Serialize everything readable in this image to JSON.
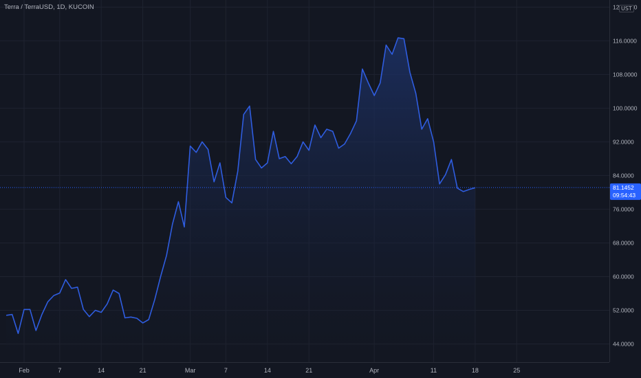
{
  "header": {
    "symbol_line": "Terra / TerraUSD, 1D, KUCOIN",
    "currency": "UST"
  },
  "colors": {
    "background": "#131722",
    "grid": "#1f2330",
    "line": "#2f5de0",
    "fill_top": "#1e3266",
    "price_label_bg": "#2962ff",
    "axis_text": "#b2b5be"
  },
  "price_label": {
    "price": "81.1452",
    "countdown": "09:54:43"
  },
  "chart_data": {
    "type": "area",
    "ylim": [
      40,
      124
    ],
    "y_ticks": [
      "44.0000",
      "52.0000",
      "60.0000",
      "68.0000",
      "76.0000",
      "84.0000",
      "92.0000",
      "100.0000",
      "108.0000",
      "116.0000",
      "124.0000"
    ],
    "y_tick_values": [
      44,
      52,
      60,
      68,
      76,
      84,
      92,
      100,
      108,
      116,
      124
    ],
    "x_ticks": [
      "Feb",
      "7",
      "14",
      "21",
      "Mar",
      "7",
      "14",
      "21",
      "Apr",
      "11",
      "18",
      "25"
    ],
    "x_tick_days": [
      0,
      6,
      13,
      20,
      28,
      34,
      41,
      48,
      59,
      69,
      76,
      83
    ],
    "last_price": 81.1452,
    "series": [
      {
        "x": [
          -3,
          -2,
          -1,
          0,
          1,
          2,
          3,
          4,
          5,
          6,
          7,
          8,
          9,
          10,
          11,
          12,
          13,
          14,
          15,
          16,
          17,
          18,
          19,
          20,
          21,
          22,
          23,
          24,
          25,
          26,
          27,
          28,
          29,
          30,
          31,
          32,
          33,
          34,
          35,
          36,
          37,
          38,
          39,
          40,
          41,
          42,
          43,
          44,
          45,
          46,
          47,
          48,
          49,
          50,
          51,
          52,
          53,
          54,
          55,
          56,
          57,
          58,
          59,
          60,
          61,
          62,
          63,
          64,
          65,
          66,
          67,
          68,
          69,
          70,
          71,
          72,
          73,
          74,
          75,
          76
        ],
        "y": [
          50.8,
          51.0,
          46.5,
          52.2,
          52.2,
          47.2,
          51.0,
          54.0,
          55.5,
          56.1,
          59.3,
          57.2,
          57.5,
          52.2,
          50.5,
          52.0,
          51.5,
          53.5,
          56.8,
          56.0,
          50.2,
          50.4,
          50.1,
          49.0,
          49.8,
          54.5,
          60.0,
          65.0,
          72.5,
          77.8,
          71.8,
          91.0,
          89.5,
          92.0,
          90.2,
          82.5,
          87.0,
          78.8,
          77.5,
          85.0,
          98.5,
          100.5,
          87.8,
          85.8,
          87.0,
          94.5,
          88.0,
          88.5,
          86.8,
          88.5,
          92.0,
          90.0,
          96.0,
          93.0,
          95.0,
          94.5,
          90.5,
          91.5,
          94.0,
          97.0,
          109.3,
          106.0,
          103.0,
          106.0,
          115.0,
          112.8,
          116.7,
          116.5,
          108.5,
          103.5,
          95.0,
          97.5,
          92.0,
          82.0,
          84.2,
          87.8,
          81.0,
          80.2,
          80.7,
          81.1
        ]
      }
    ]
  }
}
